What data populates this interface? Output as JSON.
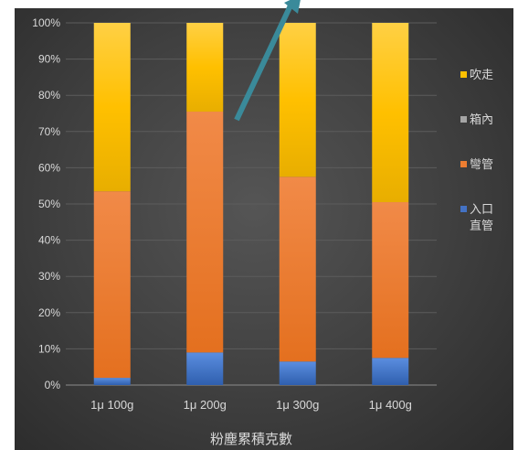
{
  "chart_data": {
    "type": "bar",
    "stacked": true,
    "percent": true,
    "categories": [
      "1μ 100g",
      "1μ 200g",
      "1μ 300g",
      "1μ 400g"
    ],
    "series": [
      {
        "name": "入口直管",
        "color": "#4472c4",
        "values": [
          2,
          9,
          6.5,
          7.5
        ]
      },
      {
        "name": "彎管",
        "color": "#ed7d31",
        "values": [
          51.5,
          66.5,
          51,
          43
        ]
      },
      {
        "name": "箱內",
        "color": "#a5a5a5",
        "values": [
          0,
          0,
          0,
          0
        ]
      },
      {
        "name": "吹走",
        "color": "#ffc000",
        "values": [
          46.5,
          24.5,
          42.5,
          49.5
        ]
      }
    ],
    "legend_order": [
      "吹走",
      "箱內",
      "彎管",
      "入口直管"
    ],
    "legend_labels": [
      [
        "吹走"
      ],
      [
        "箱內"
      ],
      [
        "彎管"
      ],
      [
        "入口",
        "直管"
      ]
    ],
    "yticks": [
      "0%",
      "10%",
      "20%",
      "30%",
      "40%",
      "50%",
      "60%",
      "70%",
      "80%",
      "90%",
      "100%"
    ],
    "ylim": [
      0,
      100
    ],
    "xlabel": "粉塵累積克數",
    "ylabel": "",
    "title": "",
    "grid": true,
    "legend_position": "right"
  },
  "annotation": {
    "shape": "arrow",
    "color": "#3a8a9a",
    "points_to": "1μ 200g"
  }
}
